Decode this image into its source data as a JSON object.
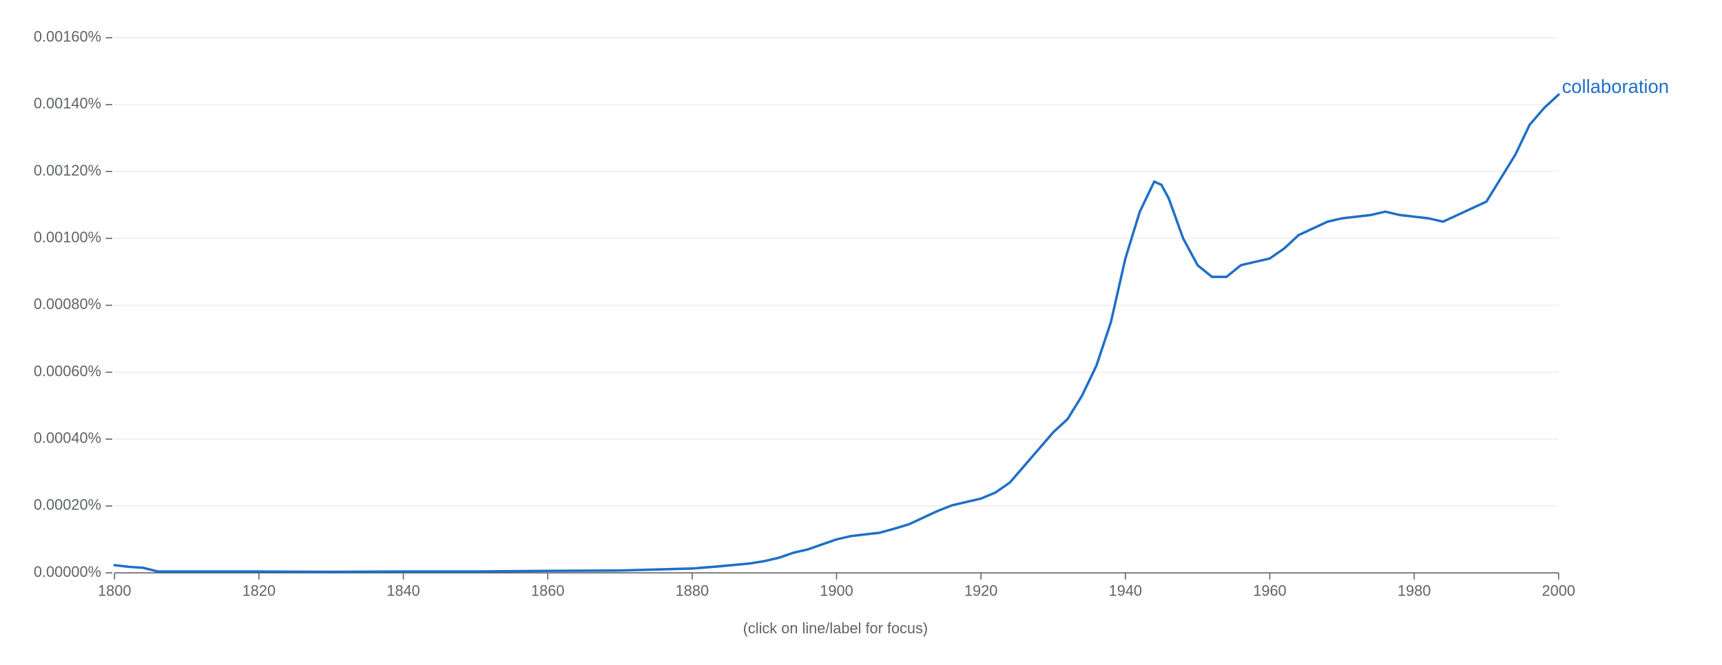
{
  "chart_data": {
    "type": "line",
    "footer": "(click on line/label for focus)",
    "x": [
      1800,
      1802,
      1804,
      1806,
      1810,
      1820,
      1830,
      1840,
      1850,
      1860,
      1870,
      1880,
      1884,
      1888,
      1890,
      1892,
      1894,
      1896,
      1898,
      1900,
      1902,
      1904,
      1906,
      1908,
      1910,
      1912,
      1914,
      1916,
      1918,
      1920,
      1922,
      1924,
      1926,
      1928,
      1930,
      1932,
      1934,
      1936,
      1938,
      1940,
      1942,
      1944,
      1945,
      1946,
      1948,
      1950,
      1952,
      1954,
      1956,
      1958,
      1960,
      1962,
      1964,
      1966,
      1968,
      1970,
      1972,
      1974,
      1976,
      1978,
      1980,
      1982,
      1984,
      1986,
      1988,
      1990,
      1992,
      1994,
      1996,
      1998,
      2000
    ],
    "series": [
      {
        "name": "collaboration",
        "color": "#1f6fc8",
        "values": [
          2.3e-05,
          1.8e-05,
          1.5e-05,
          4e-06,
          4e-06,
          4e-06,
          3e-06,
          4e-06,
          4e-06,
          6e-06,
          7e-06,
          1.3e-05,
          2e-05,
          2.8e-05,
          3.5e-05,
          4.5e-05,
          6e-05,
          7e-05,
          8.5e-05,
          0.0001,
          0.00011,
          0.000115,
          0.00012,
          0.000132,
          0.000145,
          0.000165,
          0.000185,
          0.000202,
          0.000212,
          0.000222,
          0.00024,
          0.00027,
          0.00032,
          0.00037,
          0.00042,
          0.00046,
          0.00053,
          0.00062,
          0.00075,
          0.00094,
          0.00108,
          0.00117,
          0.00116,
          0.00112,
          0.001,
          0.00092,
          0.000885,
          0.000885,
          0.00092,
          0.00093,
          0.00094,
          0.00097,
          0.00101,
          0.00103,
          0.00105,
          0.00106,
          0.001065,
          0.00107,
          0.00108,
          0.00107,
          0.001065,
          0.00106,
          0.00105,
          0.00107,
          0.00109,
          0.00111,
          0.00118,
          0.00125,
          0.00134,
          0.00139,
          0.00143
        ]
      }
    ],
    "xlim": [
      1800,
      2000
    ],
    "xticks": [
      1800,
      1820,
      1840,
      1860,
      1880,
      1900,
      1920,
      1940,
      1960,
      1980,
      2000
    ],
    "ylim": [
      0,
      0.0016
    ],
    "yticks": [
      {
        "value": 0,
        "label": "0.00000%"
      },
      {
        "value": 0.0002,
        "label": "0.00020%"
      },
      {
        "value": 0.0004,
        "label": "0.00040%"
      },
      {
        "value": 0.0006,
        "label": "0.00060%"
      },
      {
        "value": 0.0008,
        "label": "0.00080%"
      },
      {
        "value": 0.001,
        "label": "0.00100%"
      },
      {
        "value": 0.0012,
        "label": "0.00120%"
      },
      {
        "value": 0.0014,
        "label": "0.00140%"
      },
      {
        "value": 0.0016,
        "label": "0.00160%"
      }
    ],
    "grid": true
  }
}
